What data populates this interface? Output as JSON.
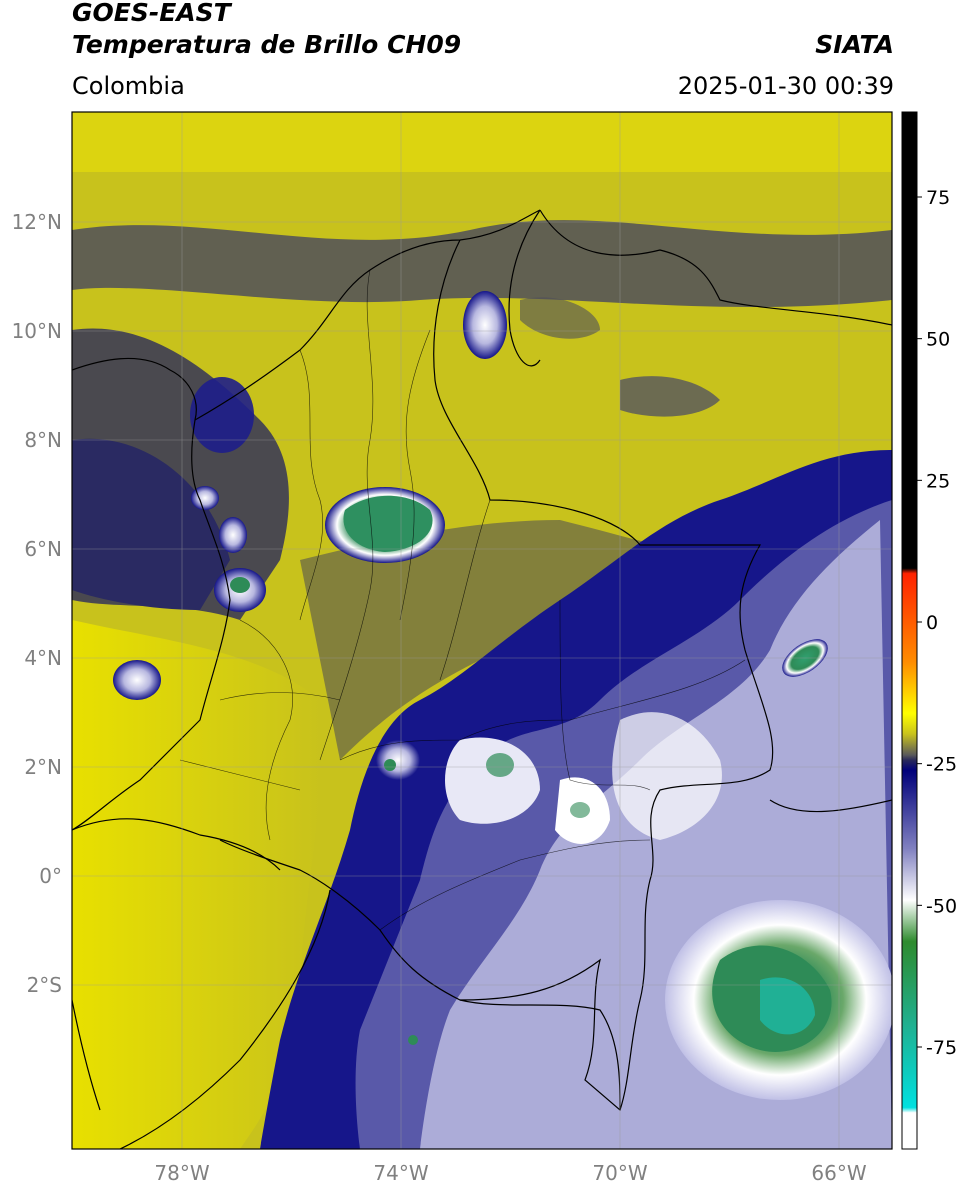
{
  "header": {
    "satellite": "GOES-EAST",
    "product": "Temperatura de Brillo CH09",
    "region": "Colombia",
    "agency": "SIATA",
    "timestamp": "2025-01-30 00:39"
  },
  "map": {
    "lat_ticks": [
      "12°N",
      "10°N",
      "8°N",
      "6°N",
      "4°N",
      "2°N",
      "0°",
      "2°S"
    ],
    "lon_ticks": [
      "78°W",
      "74°W",
      "70°W",
      "66°W"
    ],
    "extent": {
      "lon": [
        -80,
        -65
      ],
      "lat": [
        -5,
        14
      ]
    },
    "colors": {
      "warm": "#c8c21c",
      "mid": "#4a4a55",
      "cold": "#16168a",
      "very_cold": "#ffffff",
      "deep": "#2e8b57",
      "border": "#000000",
      "grid": "#9a9a9a"
    }
  },
  "colorbar": {
    "labels": [
      "75",
      "50",
      "25",
      "0",
      "-25",
      "-50",
      "-75"
    ],
    "values": [
      75,
      50,
      25,
      0,
      -25,
      -50,
      -75
    ],
    "range": [
      -93,
      90
    ],
    "unit": ""
  }
}
